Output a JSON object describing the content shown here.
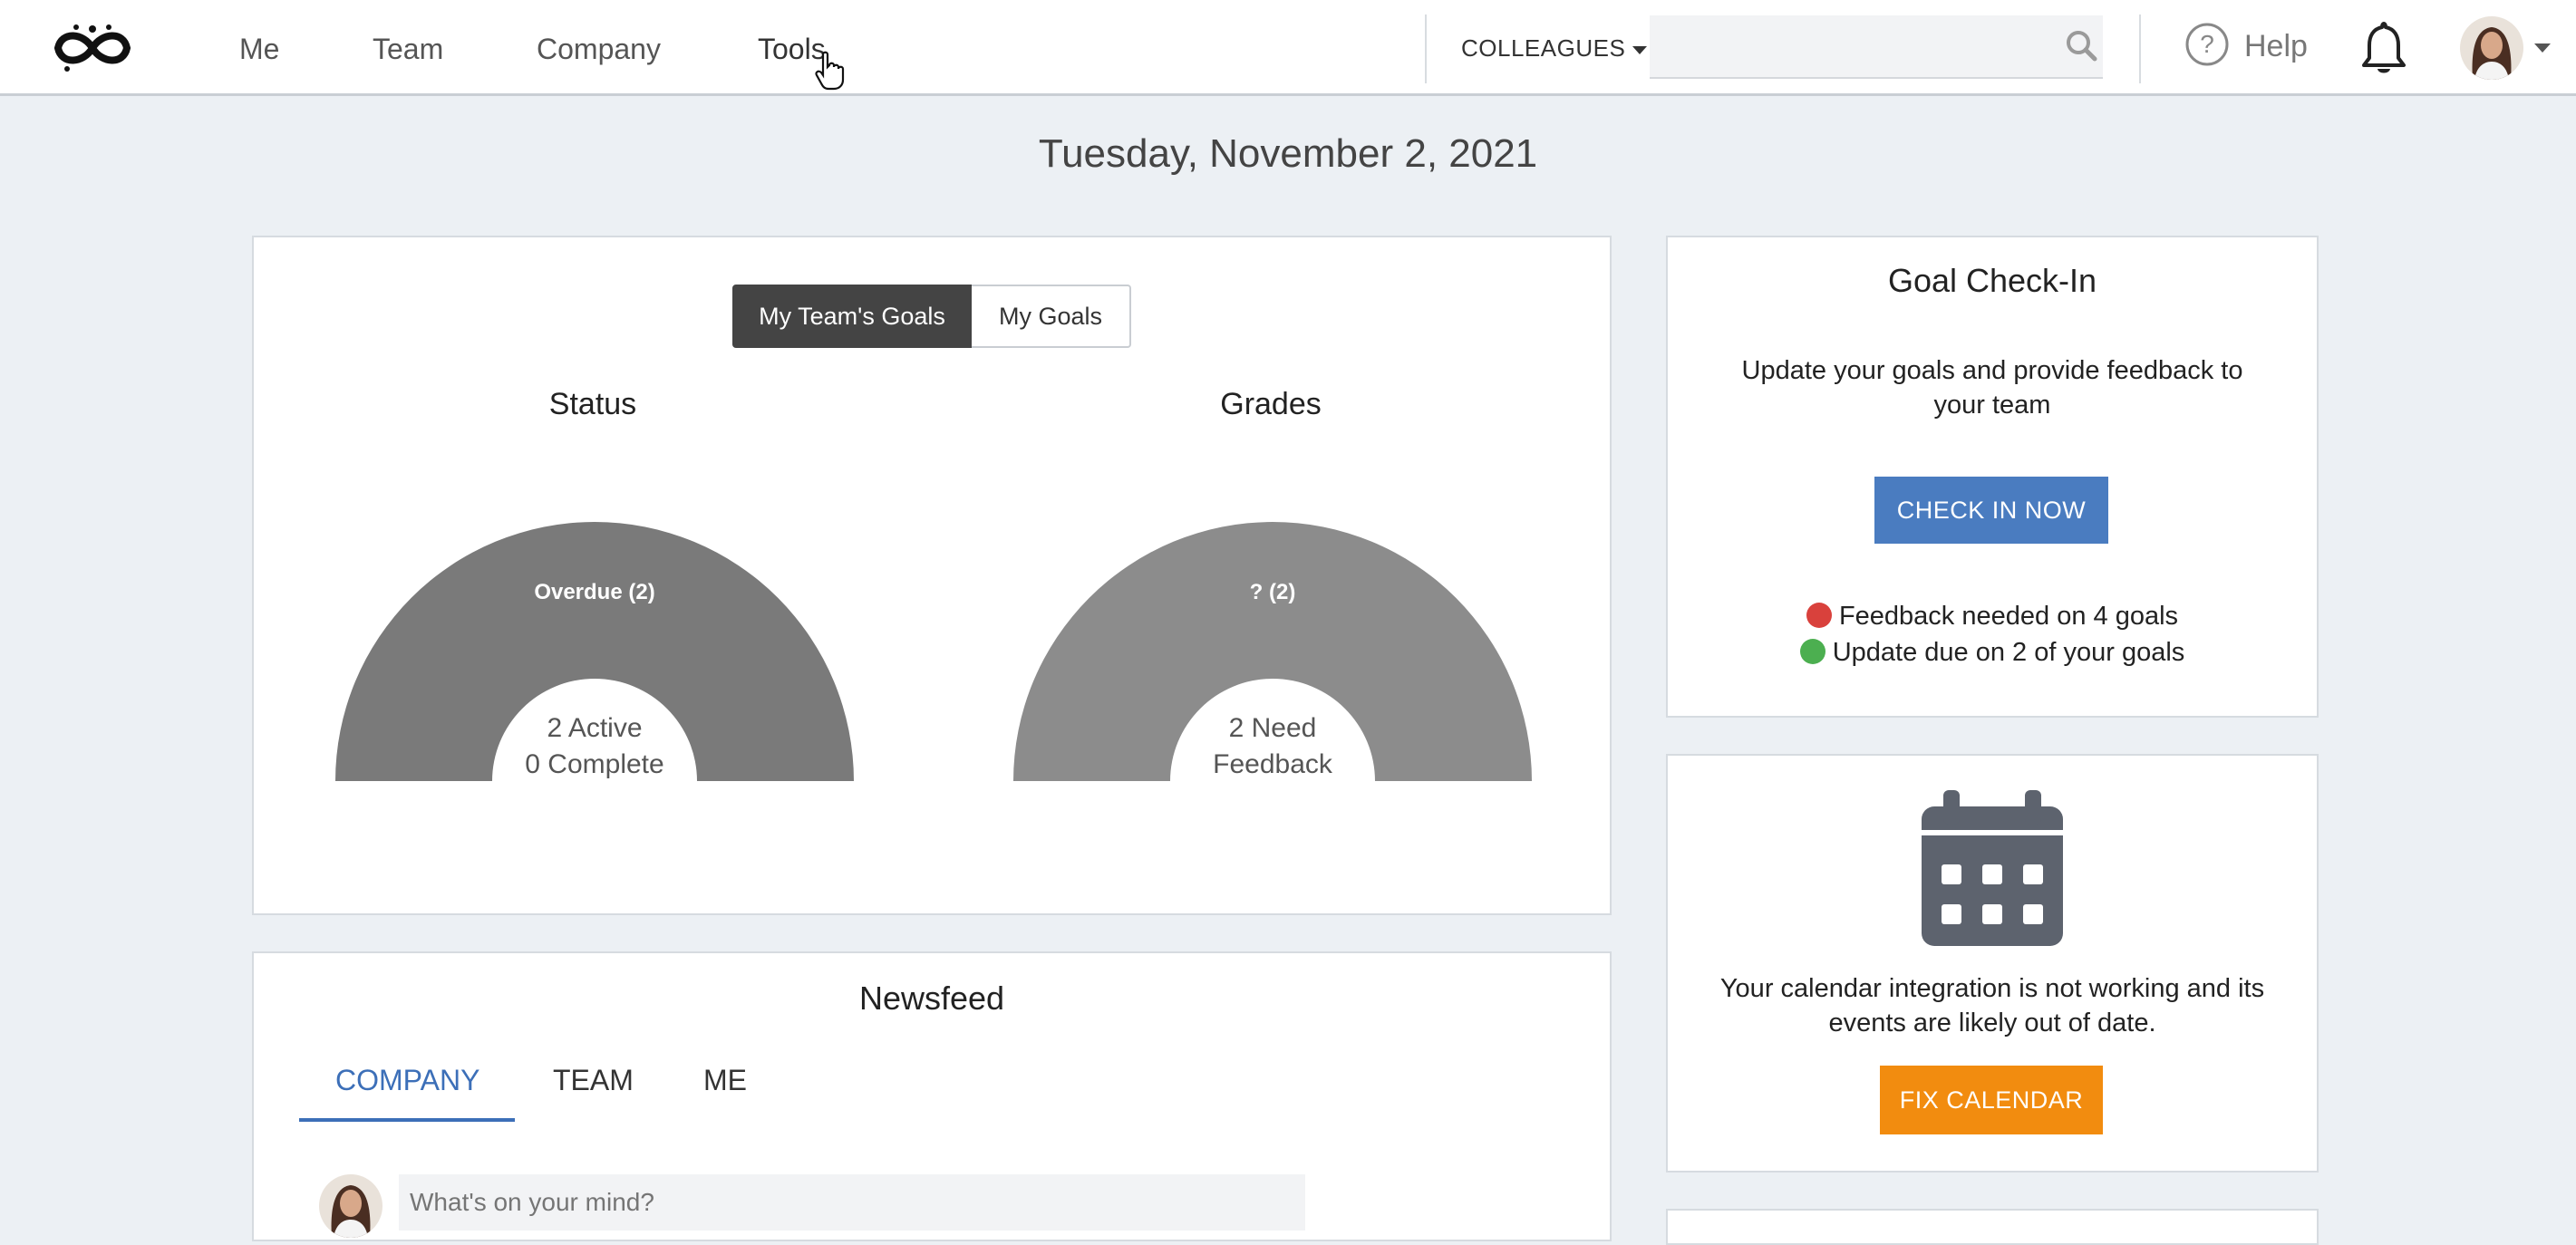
{
  "nav": {
    "items": [
      {
        "label": "Me"
      },
      {
        "label": "Team"
      },
      {
        "label": "Company"
      },
      {
        "label": "Tools"
      }
    ],
    "colleagues_label": "COLLEAGUES",
    "search_placeholder": "",
    "help_label": "Help",
    "icons": [
      "logo-icon",
      "search-icon",
      "help-icon",
      "bell-icon",
      "avatar"
    ]
  },
  "date": "Tuesday, November 2, 2021",
  "goals": {
    "toggle": {
      "active": "My Team's Goals",
      "inactive": "My Goals"
    },
    "status": {
      "title": "Status",
      "segment_label": "Overdue (2)",
      "center_line1": "2 Active",
      "center_line2": "0 Complete",
      "color": "#7a7a7a"
    },
    "grades": {
      "title": "Grades",
      "segment_label": "? (2)",
      "center_line1": "2 Need",
      "center_line2": "Feedback",
      "color": "#8c8c8c"
    }
  },
  "newsfeed": {
    "title": "Newsfeed",
    "tabs": [
      {
        "label": "COMPANY",
        "active": true
      },
      {
        "label": "TEAM",
        "active": false
      },
      {
        "label": "ME",
        "active": false
      }
    ],
    "post_placeholder": "What's on your mind?"
  },
  "checkin": {
    "title": "Goal Check-In",
    "text": "Update your goals and provide feedback to your team",
    "button_label": "CHECK IN NOW",
    "feedback_line": "Feedback needed on 4 goals",
    "update_line": "Update due on 2 of your goals",
    "colors": {
      "button": "#4a7cc0",
      "red": "#d9413c",
      "green": "#4caf50"
    }
  },
  "calendar": {
    "text": "Your calendar integration is not working and its events are likely out of date.",
    "button_label": "FIX CALENDAR",
    "button_color": "#f28c0f",
    "icon": "calendar-icon"
  }
}
